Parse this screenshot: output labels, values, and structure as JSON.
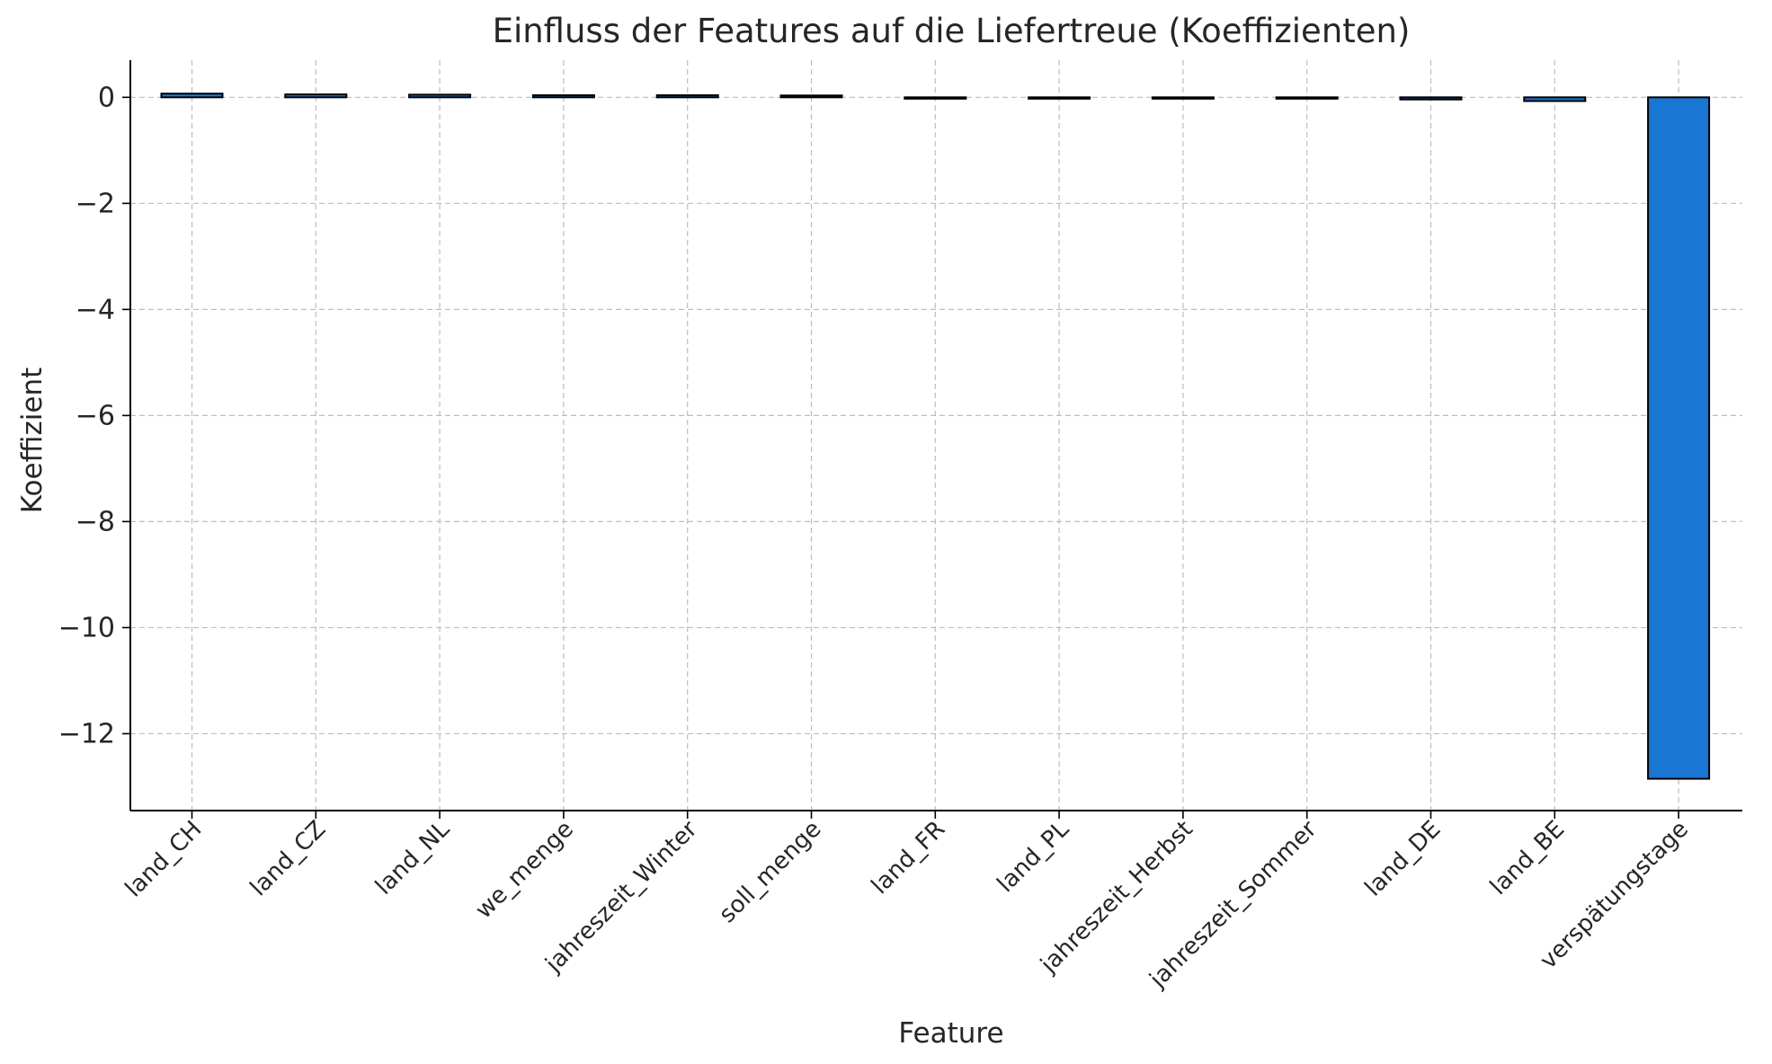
{
  "chart_data": {
    "type": "bar",
    "title": "Einfluss der Features auf die Liefertreue (Koeffizienten)",
    "xlabel": "Feature",
    "ylabel": "Koeffizient",
    "categories": [
      "land_CH",
      "land_CZ",
      "land_NL",
      "we_menge",
      "jahreszeit_Winter",
      "soll_menge",
      "land_FR",
      "land_PL",
      "jahreszeit_Herbst",
      "jahreszeit_Sommer",
      "land_DE",
      "land_BE",
      "verspätungstage"
    ],
    "values": [
      0.07,
      0.055,
      0.05,
      0.04,
      0.04,
      0.035,
      -0.02,
      -0.02,
      -0.02,
      -0.02,
      -0.04,
      -0.07,
      -12.85
    ],
    "ylim": [
      -13.45,
      0.7
    ],
    "yticks": [
      0,
      -2,
      -4,
      -6,
      -8,
      -10,
      -12
    ],
    "ytick_labels": [
      "0",
      "−2",
      "−4",
      "−6",
      "−8",
      "−10",
      "−12"
    ],
    "grid": true,
    "colors": {
      "bar": "#1976d2",
      "bar_edge": "#000000",
      "grid": "#bdbdbd",
      "axis": "#000000",
      "text": "#262626"
    }
  }
}
